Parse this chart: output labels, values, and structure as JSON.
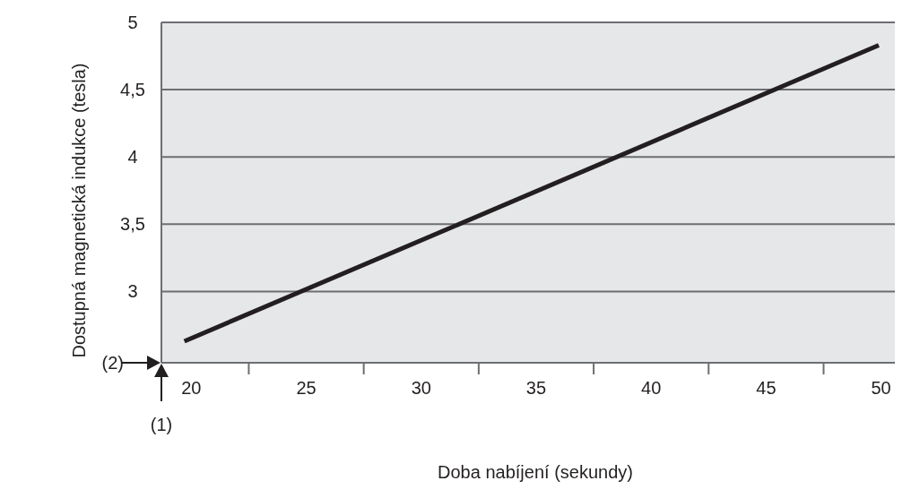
{
  "chart_data": {
    "type": "line",
    "xlabel": "Doba nabíjení (sekundy)",
    "ylabel": "Dostupná magnetická indukce (tesla)",
    "x": [
      19.7,
      49.9
    ],
    "series": [
      {
        "color": "#231f20",
        "values": [
          2.63,
          4.83
        ]
      }
    ],
    "xlim": [
      18.7,
      50.6
    ],
    "xticks": [
      20,
      {
        "value": 22.5,
        "label": null
      },
      25,
      {
        "value": 27.5,
        "label": null
      },
      30,
      {
        "value": 32.5,
        "label": null
      },
      35,
      {
        "value": 37.5,
        "label": null
      },
      40,
      {
        "value": 42.5,
        "label": null
      },
      45,
      {
        "value": 47.5,
        "label": null
      },
      50
    ],
    "ylim": [
      2.47,
      5
    ],
    "yticks": [
      3,
      {
        "value": 3.5,
        "label": "3,5"
      },
      4,
      {
        "value": 4.5,
        "label": "4,5"
      },
      5
    ],
    "grid": "y",
    "marker": "none",
    "line_style": "solid",
    "annotations": [
      "(1)",
      "(2)"
    ]
  }
}
